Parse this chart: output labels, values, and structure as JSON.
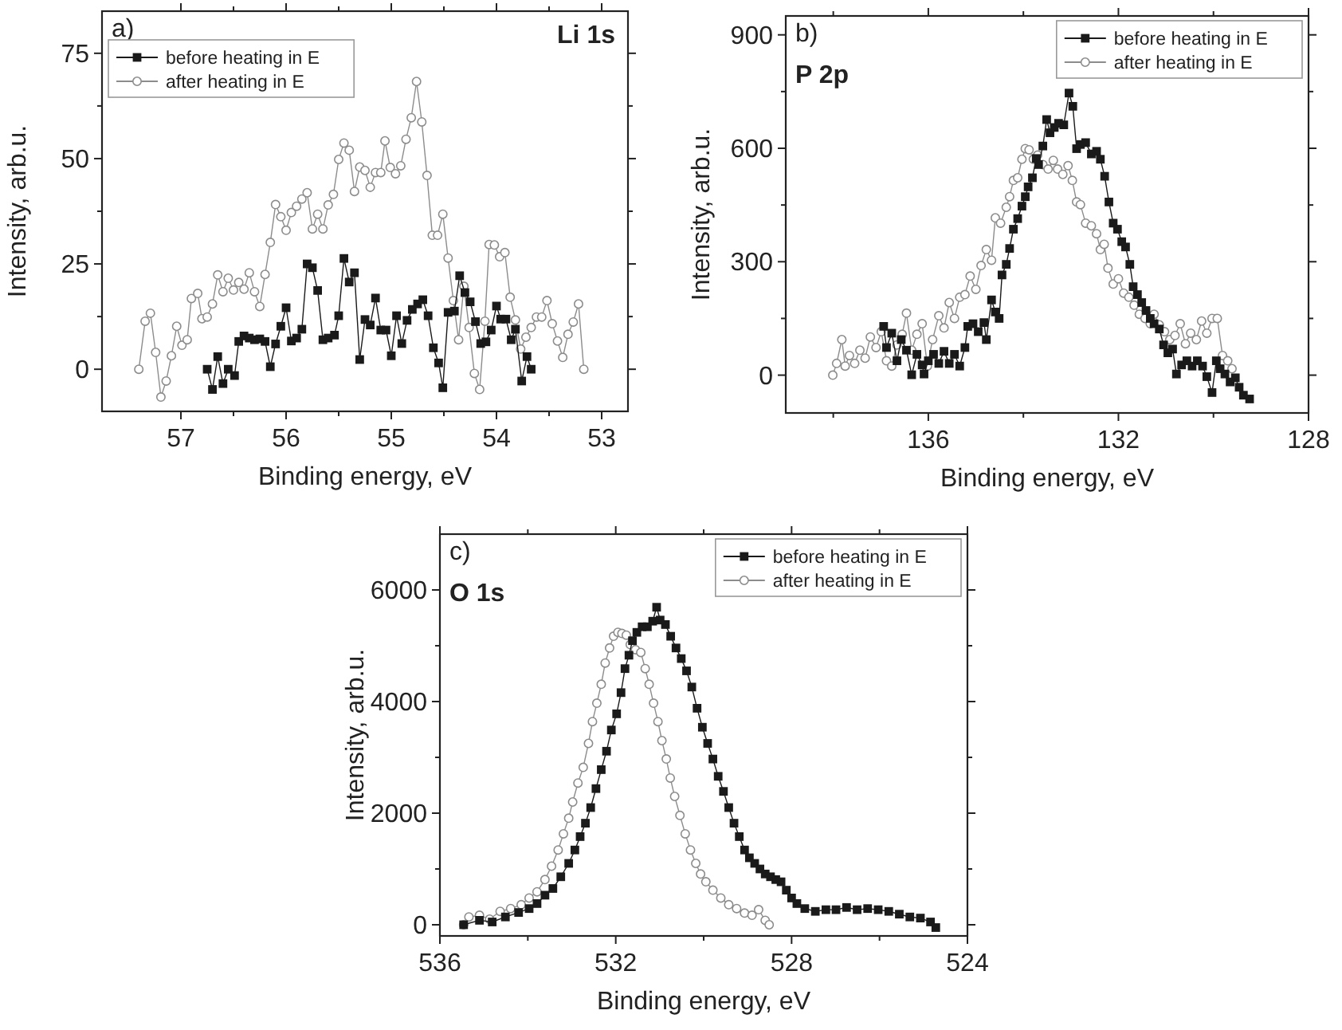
{
  "chart_data": [
    {
      "type": "line",
      "annotations": [
        "a)",
        "Li 1s"
      ],
      "xlabel": "Binding energy, eV",
      "ylabel": "Intensity, arb.u.",
      "legend": "top left",
      "xlim": [
        57.75,
        52.75
      ],
      "xticks": [
        57,
        {
          "value": 56.5,
          "label": null
        },
        56,
        {
          "value": 55.5,
          "label": null
        },
        55,
        {
          "value": 54.5,
          "label": null
        },
        54,
        {
          "value": 53.5,
          "label": null
        },
        53
      ],
      "ylim": [
        -10,
        85
      ],
      "yticks": [
        0,
        {
          "value": 12.5,
          "label": null
        },
        25,
        {
          "value": 37.5,
          "label": null
        },
        50,
        {
          "value": 62.5,
          "label": null
        },
        75
      ],
      "series": [
        {
          "name": "before heating in E",
          "color": "#1a1a1a",
          "marker": "square",
          "x": [
            56.75,
            56.7,
            56.65,
            56.6,
            56.55,
            56.49,
            56.45,
            56.4,
            56.35,
            56.3,
            56.25,
            56.2,
            56.15,
            56.1,
            56.05,
            56,
            55.95,
            55.9,
            55.85,
            55.8,
            55.75,
            55.7,
            55.65,
            55.6,
            55.54,
            55.5,
            55.45,
            55.4,
            55.35,
            55.3,
            55.25,
            55.2,
            55.15,
            55.1,
            55.05,
            55,
            54.95,
            54.9,
            54.85,
            54.8,
            54.75,
            54.7,
            54.65,
            54.6,
            54.55,
            54.51,
            54.46,
            54.4,
            54.35,
            54.3,
            54.25,
            54.2,
            54.15,
            54.1,
            54.05,
            54,
            53.96,
            53.91,
            53.86,
            53.82,
            53.76,
            53.71,
            53.67
          ],
          "values": [
            0,
            -4.8,
            3,
            -3.4,
            0,
            -1.5,
            6.6,
            7.9,
            7.4,
            7,
            7.2,
            6.6,
            0.6,
            6,
            10.2,
            14.6,
            6.7,
            7.4,
            9.5,
            25,
            24.1,
            18.7,
            7,
            7.4,
            8.1,
            12.7,
            26.3,
            20.7,
            22.9,
            2.3,
            11.8,
            10.5,
            16.9,
            9.3,
            9.3,
            3.2,
            12.7,
            6.1,
            11.6,
            14.2,
            15.5,
            16.5,
            12.7,
            5.1,
            1.5,
            -4.4,
            13.5,
            13.8,
            22.2,
            18.2,
            16,
            11.3,
            6.1,
            6.5,
            9.3,
            15,
            11.9,
            11.9,
            7,
            9.5,
            -2.8,
            3,
            0
          ]
        },
        {
          "name": "after heating in E",
          "color": "#8c8c8c",
          "marker": "circle",
          "x": [
            57.4,
            57.34,
            57.29,
            57.24,
            57.19,
            57.14,
            57.09,
            57.04,
            56.99,
            56.94,
            56.9,
            56.84,
            56.8,
            56.75,
            56.7,
            56.65,
            56.6,
            56.55,
            56.5,
            56.45,
            56.4,
            56.35,
            56.3,
            56.25,
            56.2,
            56.15,
            56.1,
            56.05,
            56,
            55.95,
            55.9,
            55.85,
            55.8,
            55.75,
            55.7,
            55.65,
            55.6,
            55.55,
            55.5,
            55.45,
            55.4,
            55.35,
            55.3,
            55.25,
            55.2,
            55.15,
            55.1,
            55.06,
            55.01,
            54.96,
            54.91,
            54.86,
            54.81,
            54.76,
            54.71,
            54.66,
            54.61,
            54.56,
            54.51,
            54.46,
            54.41,
            54.36,
            54.31,
            54.26,
            54.21,
            54.16,
            54.11,
            54.07,
            54.02,
            53.97,
            53.92,
            53.87,
            53.82,
            53.77,
            53.72,
            53.67,
            53.62,
            53.57,
            53.52,
            53.47,
            53.42,
            53.37,
            53.32,
            53.27,
            53.22,
            53.17
          ],
          "values": [
            0,
            11.4,
            13.3,
            4,
            -6.6,
            -2.8,
            3.2,
            10.2,
            5.7,
            7,
            16.8,
            18,
            12,
            12.4,
            15.5,
            22.4,
            18.4,
            21.6,
            18.8,
            20.6,
            19,
            22.9,
            18.4,
            14.9,
            22.5,
            30.1,
            39.1,
            36.2,
            33,
            37.2,
            38.7,
            40.4,
            41.9,
            33.3,
            36.8,
            33.3,
            39,
            41.5,
            49.8,
            53.7,
            52,
            42.2,
            48,
            47.2,
            43.2,
            46.7,
            46.7,
            54.2,
            47.9,
            46.4,
            48.3,
            54.6,
            59.7,
            68.3,
            58.7,
            46,
            31.8,
            31.8,
            36.8,
            26.4,
            16.3,
            7,
            19.7,
            9.9,
            -1,
            -4.8,
            11.4,
            29.6,
            29.5,
            26.7,
            27.7,
            17.1,
            11.7,
            4.8,
            7.6,
            9.9,
            12.4,
            12.4,
            16.3,
            10.8,
            6.7,
            2.8,
            8.3,
            11.2,
            15.5,
            0
          ]
        }
      ]
    },
    {
      "type": "line",
      "annotations": [
        "b)",
        "P 2p"
      ],
      "xlabel": "Binding energy, eV",
      "ylabel": "Intensity, arb.u.",
      "legend": "top right",
      "xlim": [
        139,
        128
      ],
      "xticks": [
        {
          "value": 138,
          "label": null
        },
        136,
        {
          "value": 134,
          "label": null
        },
        132,
        {
          "value": 130,
          "label": null
        },
        128
      ],
      "ylim": [
        -100,
        950
      ],
      "yticks": [
        0,
        {
          "value": 150,
          "label": null
        },
        300,
        {
          "value": 450,
          "label": null
        },
        600,
        {
          "value": 750,
          "label": null
        },
        900
      ],
      "series": [
        {
          "name": "before heating in E",
          "color": "#1a1a1a",
          "marker": "square",
          "x": [
            136.94,
            136.88,
            136.77,
            136.66,
            136.57,
            136.46,
            136.35,
            136.24,
            136.13,
            136.09,
            136,
            135.89,
            135.78,
            135.67,
            135.56,
            135.45,
            135.34,
            135.23,
            135.17,
            135.06,
            134.95,
            134.83,
            134.78,
            134.67,
            134.59,
            134.51,
            134.45,
            134.36,
            134.29,
            134.21,
            134.12,
            134.03,
            133.96,
            133.9,
            133.81,
            133.73,
            133.68,
            133.59,
            133.51,
            133.44,
            133.35,
            133.26,
            133.15,
            133.04,
            132.96,
            132.88,
            132.8,
            132.69,
            132.57,
            132.46,
            132.38,
            132.29,
            132.2,
            132.11,
            132.02,
            131.93,
            131.85,
            131.76,
            131.69,
            131.6,
            131.51,
            131.42,
            131.33,
            131.25,
            131.14,
            131.05,
            130.96,
            130.86,
            130.78,
            130.67,
            130.56,
            130.45,
            130.34,
            130.23,
            130.14,
            130.03,
            129.94,
            129.86,
            129.76,
            129.65,
            129.54,
            129.46,
            129.37,
            129.24
          ],
          "values": [
            129,
            73,
            111,
            38,
            94,
            66,
            1,
            55,
            27,
            3,
            38,
            55,
            31,
            63,
            31,
            55,
            24,
            73,
            129,
            136,
            115,
            139,
            94,
            199,
            167,
            150,
            265,
            293,
            335,
            386,
            414,
            447,
            472,
            498,
            522,
            573,
            557,
            606,
            676,
            641,
            655,
            666,
            662,
            746,
            711,
            599,
            610,
            615,
            585,
            592,
            571,
            526,
            458,
            402,
            386,
            353,
            339,
            293,
            234,
            213,
            192,
            171,
            150,
            136,
            122,
            80,
            59,
            69,
            3,
            27,
            38,
            24,
            38,
            24,
            -4,
            -46,
            38,
            17,
            3,
            -18,
            -7,
            -32,
            -53,
            -63
          ]
        },
        {
          "name": "after heating in E",
          "color": "#8c8c8c",
          "marker": "circle",
          "x": [
            138.01,
            137.93,
            137.82,
            137.75,
            137.66,
            137.55,
            137.44,
            137.33,
            137.22,
            137.1,
            136.99,
            136.88,
            136.77,
            136.66,
            136.55,
            136.46,
            136.35,
            136.24,
            136.13,
            136.02,
            135.91,
            135.78,
            135.67,
            135.56,
            135.45,
            135.34,
            135.23,
            135.12,
            135,
            134.89,
            134.78,
            134.67,
            134.59,
            134.48,
            134.36,
            134.29,
            134.21,
            134.12,
            134.03,
            133.96,
            133.88,
            133.79,
            133.7,
            133.59,
            133.48,
            133.37,
            133.28,
            133.17,
            133.06,
            132.97,
            132.88,
            132.8,
            132.69,
            132.57,
            132.46,
            132.38,
            132.3,
            132.22,
            132.11,
            132,
            131.89,
            131.78,
            131.67,
            131.56,
            131.44,
            131.33,
            131.25,
            131.14,
            131.03,
            130.92,
            130.81,
            130.7,
            130.59,
            130.48,
            130.36,
            130.25,
            130.14,
            130.03,
            129.92,
            129.81,
            129.7,
            129.61
          ],
          "values": [
            0,
            31,
            94,
            24,
            52,
            31,
            66,
            45,
            101,
            73,
            115,
            38,
            24,
            80,
            108,
            164,
            66,
            108,
            136,
            24,
            94,
            157,
            125,
            192,
            150,
            206,
            213,
            262,
            227,
            290,
            332,
            304,
            416,
            402,
            444,
            472,
            515,
            522,
            571,
            599,
            596,
            571,
            582,
            557,
            545,
            568,
            545,
            531,
            554,
            515,
            458,
            451,
            402,
            395,
            374,
            332,
            346,
            283,
            241,
            255,
            217,
            206,
            185,
            161,
            150,
            136,
            161,
            133,
            115,
            94,
            105,
            136,
            83,
            111,
            94,
            143,
            111,
            150,
            150,
            52,
            38,
            17
          ]
        }
      ]
    },
    {
      "type": "line",
      "annotations": [
        "c)",
        "O 1s"
      ],
      "xlabel": "Binding energy, eV",
      "ylabel": "Intensity, arb.u.",
      "legend": "top right",
      "xlim": [
        536,
        524
      ],
      "xticks": [
        536,
        {
          "value": 534,
          "label": null
        },
        532,
        {
          "value": 530,
          "label": null
        },
        528,
        {
          "value": 526,
          "label": null
        },
        524
      ],
      "ylim": [
        -200,
        7000
      ],
      "yticks": [
        0,
        {
          "value": 1000,
          "label": null
        },
        2000,
        {
          "value": 3000,
          "label": null
        },
        4000,
        {
          "value": 5000,
          "label": null
        },
        6000
      ],
      "series": [
        {
          "name": "before heating in E",
          "color": "#1a1a1a",
          "marker": "square",
          "x": [
            535.46,
            535.1,
            534.81,
            534.51,
            534.21,
            533.97,
            533.79,
            533.61,
            533.43,
            533.25,
            533.07,
            532.93,
            532.81,
            532.69,
            532.57,
            532.45,
            532.33,
            532.21,
            532.1,
            531.98,
            531.88,
            531.79,
            531.7,
            531.62,
            531.52,
            531.4,
            531.28,
            531.16,
            531.07,
            530.99,
            530.87,
            530.75,
            530.63,
            530.51,
            530.39,
            530.27,
            530.15,
            530.03,
            529.91,
            529.79,
            529.67,
            529.55,
            529.43,
            529.31,
            529.19,
            529.07,
            528.96,
            528.84,
            528.72,
            528.6,
            528.48,
            528.36,
            528.24,
            528.12,
            528,
            527.88,
            527.7,
            527.46,
            527.22,
            526.99,
            526.75,
            526.51,
            526.27,
            526.03,
            525.79,
            525.55,
            525.31,
            525.07,
            524.84,
            524.72
          ],
          "values": [
            0,
            80,
            50,
            140,
            220,
            290,
            380,
            530,
            650,
            860,
            1100,
            1340,
            1580,
            1820,
            2100,
            2440,
            2780,
            3110,
            3490,
            3780,
            4160,
            4590,
            4830,
            5090,
            5240,
            5340,
            5340,
            5440,
            5690,
            5460,
            5380,
            5170,
            4960,
            4770,
            4550,
            4260,
            3880,
            3540,
            3250,
            2970,
            2660,
            2390,
            2100,
            1820,
            1580,
            1340,
            1200,
            1100,
            1000,
            910,
            860,
            810,
            770,
            620,
            480,
            380,
            290,
            240,
            270,
            270,
            310,
            270,
            290,
            270,
            240,
            190,
            140,
            120,
            50,
            -50
          ]
        },
        {
          "name": "after heating in E",
          "color": "#8c8c8c",
          "marker": "circle",
          "x": [
            535.46,
            535.34,
            535.1,
            534.87,
            534.63,
            534.39,
            534.15,
            533.97,
            533.79,
            533.61,
            533.46,
            533.31,
            533.19,
            533.07,
            532.98,
            532.86,
            532.74,
            532.62,
            532.53,
            532.43,
            532.33,
            532.24,
            532.14,
            532.05,
            531.95,
            531.86,
            531.76,
            531.67,
            531.55,
            531.43,
            531.33,
            531.24,
            531.14,
            531.04,
            530.95,
            530.85,
            530.76,
            530.66,
            530.54,
            530.42,
            530.3,
            530.18,
            530.07,
            529.95,
            529.79,
            529.61,
            529.43,
            529.25,
            529.07,
            528.9,
            528.75,
            528.6,
            528.51
          ],
          "values": [
            0,
            140,
            170,
            100,
            240,
            290,
            360,
            480,
            590,
            810,
            1050,
            1340,
            1630,
            1910,
            2200,
            2540,
            2820,
            3250,
            3640,
            3970,
            4310,
            4690,
            4960,
            5170,
            5240,
            5220,
            5190,
            5020,
            4930,
            4880,
            4590,
            4310,
            3970,
            3640,
            3300,
            2970,
            2630,
            2300,
            1960,
            1630,
            1340,
            1100,
            910,
            770,
            620,
            480,
            360,
            290,
            210,
            170,
            270,
            80,
            0
          ]
        }
      ]
    }
  ]
}
